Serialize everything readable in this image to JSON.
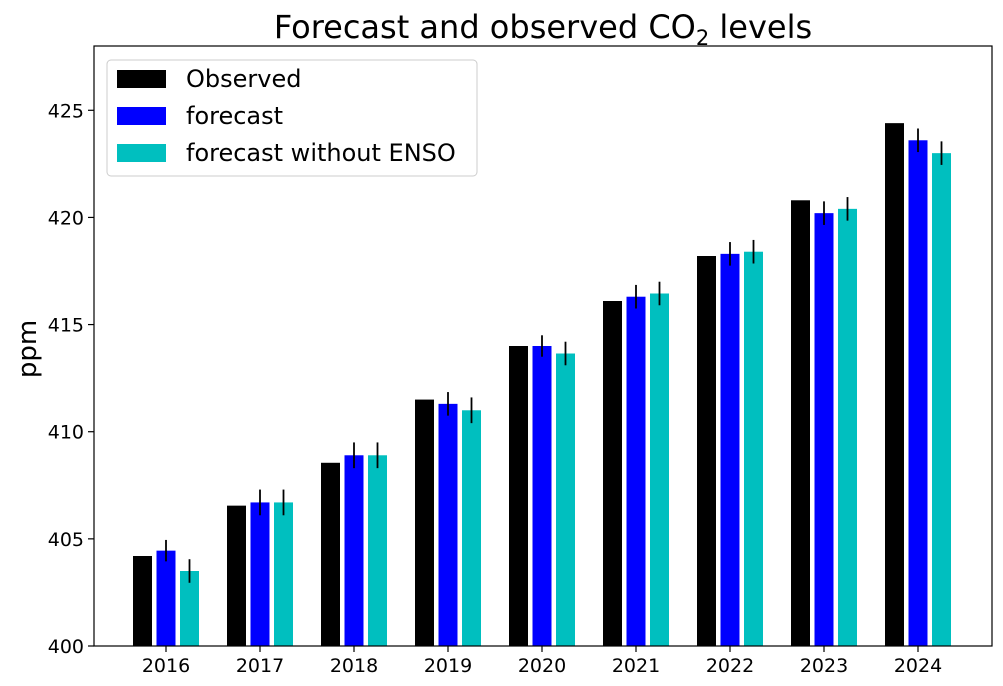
{
  "chart_data": {
    "type": "bar",
    "title": {
      "main": "Forecast and observed CO",
      "subscript": "2",
      "suffix": " levels"
    },
    "xlabel": "",
    "ylabel": "ppm",
    "categories": [
      "2016",
      "2017",
      "2018",
      "2019",
      "2020",
      "2021",
      "2022",
      "2023",
      "2024"
    ],
    "ylim": [
      400,
      428
    ],
    "yticks": [
      400,
      405,
      410,
      415,
      420,
      425
    ],
    "legend_position": "top-left",
    "series": [
      {
        "name": "Observed",
        "color": "#000000",
        "values": [
          404.2,
          406.55,
          408.55,
          411.5,
          414.0,
          416.1,
          418.2,
          420.8,
          424.4
        ],
        "errors": null
      },
      {
        "name": "forecast",
        "color": "#0000ff",
        "values": [
          404.45,
          406.7,
          408.9,
          411.3,
          414.0,
          416.3,
          418.3,
          420.2,
          423.6
        ],
        "errors": [
          0.5,
          0.6,
          0.6,
          0.55,
          0.5,
          0.55,
          0.55,
          0.55,
          0.55
        ]
      },
      {
        "name": "forecast without ENSO",
        "color": "#00bfbf",
        "values": [
          403.5,
          406.7,
          408.9,
          411.0,
          413.65,
          416.45,
          418.4,
          420.4,
          423.0
        ],
        "errors": [
          0.55,
          0.6,
          0.6,
          0.6,
          0.55,
          0.55,
          0.55,
          0.55,
          0.55
        ]
      }
    ]
  }
}
